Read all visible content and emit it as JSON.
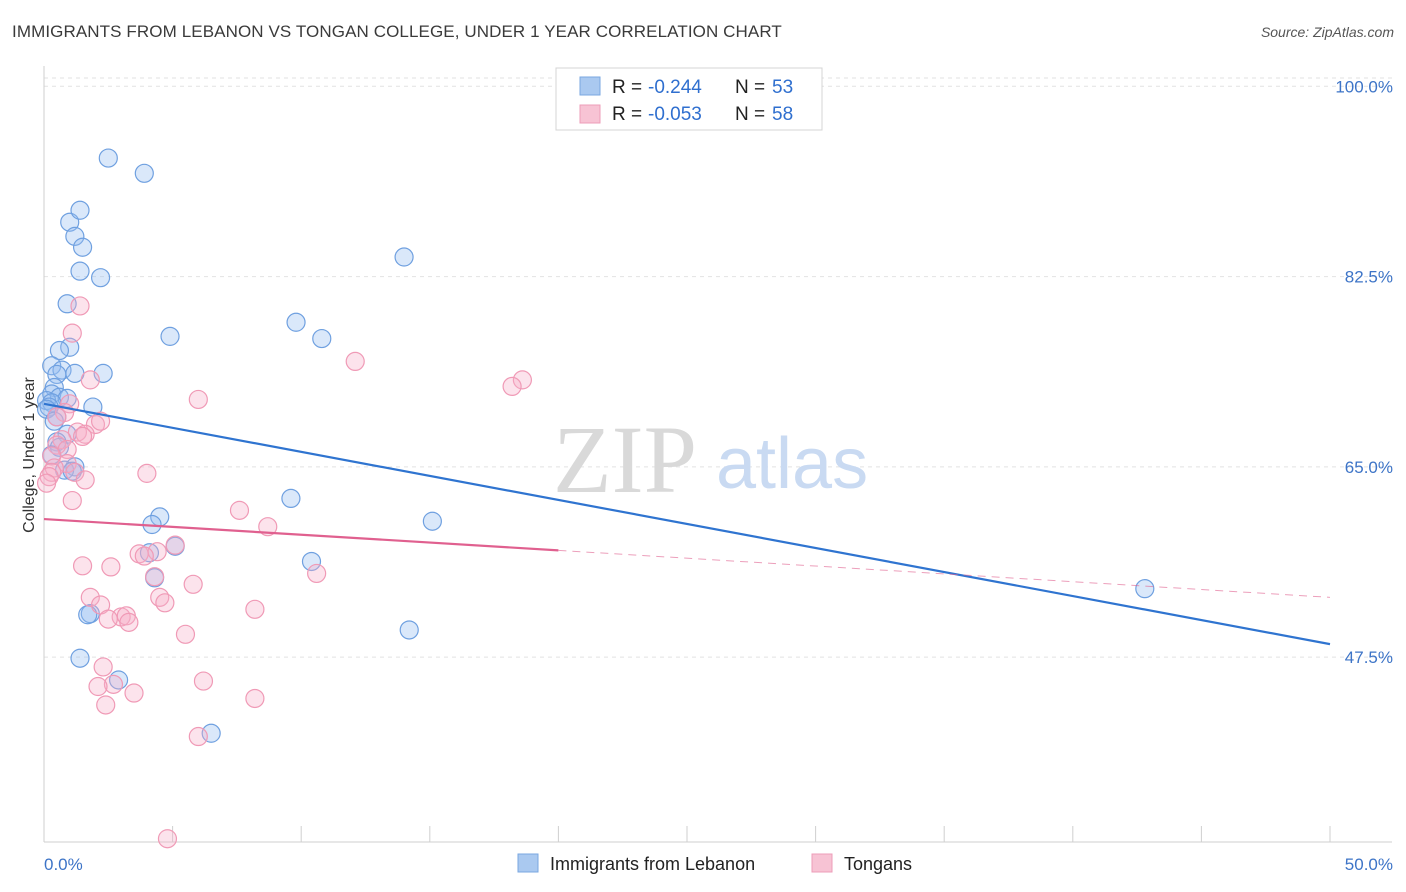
{
  "title": "IMMIGRANTS FROM LEBANON VS TONGAN COLLEGE, UNDER 1 YEAR CORRELATION CHART",
  "source": "Source: ZipAtlas.com",
  "watermark": {
    "zip": "ZIP",
    "atlas": "atlas"
  },
  "legend": {
    "r_label": "R =",
    "n_label": "N =",
    "series": [
      {
        "r": "-0.244",
        "n": "53",
        "color": "#aac9f0",
        "stroke": "#7aa7e0"
      },
      {
        "r": "-0.053",
        "n": "58",
        "color": "#f7c3d4",
        "stroke": "#ee9db8"
      }
    ]
  },
  "bottom_legend": [
    "Immigrants from Lebanon",
    "Tongans"
  ],
  "chart_data": {
    "type": "scatter",
    "title": "IMMIGRANTS FROM LEBANON VS TONGAN COLLEGE, UNDER 1 YEAR CORRELATION CHART",
    "xlabel": "",
    "ylabel": "College, Under 1 year",
    "xlim": [
      0,
      50
    ],
    "ylim": [
      30.5,
      101.5
    ],
    "x_tick_labels": [
      "0.0%",
      "50.0%"
    ],
    "y_ticks": [
      47.5,
      65.0,
      82.5,
      100.0
    ],
    "y_tick_labels": [
      "47.5%",
      "65.0%",
      "82.5%",
      "100.0%"
    ],
    "grid": true,
    "legend_position": "top-center",
    "series": [
      {
        "name": "Immigrants from Lebanon",
        "color": "#6fa0e0",
        "trend": {
          "x": [
            0,
            50
          ],
          "y": [
            70.8,
            48.7
          ],
          "color": "#2f74d0",
          "dashed_from": null
        },
        "points": [
          [
            2.5,
            93.4
          ],
          [
            3.9,
            92.0
          ],
          [
            1.0,
            87.5
          ],
          [
            1.4,
            88.6
          ],
          [
            1.2,
            86.2
          ],
          [
            1.5,
            85.2
          ],
          [
            14.0,
            84.3
          ],
          [
            1.4,
            83.0
          ],
          [
            2.2,
            82.4
          ],
          [
            0.9,
            80.0
          ],
          [
            4.9,
            77.0
          ],
          [
            9.8,
            78.3
          ],
          [
            10.8,
            76.8
          ],
          [
            1.0,
            76.0
          ],
          [
            0.6,
            75.7
          ],
          [
            0.3,
            74.3
          ],
          [
            0.7,
            73.9
          ],
          [
            0.5,
            73.5
          ],
          [
            1.2,
            73.6
          ],
          [
            2.3,
            73.6
          ],
          [
            0.4,
            72.3
          ],
          [
            0.3,
            71.7
          ],
          [
            0.6,
            71.4
          ],
          [
            0.9,
            71.3
          ],
          [
            0.1,
            71.1
          ],
          [
            0.3,
            70.9
          ],
          [
            0.2,
            70.5
          ],
          [
            0.1,
            70.3
          ],
          [
            0.5,
            69.6
          ],
          [
            1.9,
            70.5
          ],
          [
            0.4,
            69.2
          ],
          [
            0.9,
            68.0
          ],
          [
            0.5,
            67.3
          ],
          [
            0.6,
            66.8
          ],
          [
            0.3,
            66.1
          ],
          [
            1.2,
            65.0
          ],
          [
            0.8,
            64.7
          ],
          [
            1.1,
            64.6
          ],
          [
            9.6,
            62.1
          ],
          [
            15.1,
            60.0
          ],
          [
            4.5,
            60.4
          ],
          [
            4.2,
            59.7
          ],
          [
            5.1,
            57.7
          ],
          [
            4.1,
            57.1
          ],
          [
            10.4,
            56.3
          ],
          [
            4.3,
            54.8
          ],
          [
            1.8,
            51.5
          ],
          [
            1.7,
            51.4
          ],
          [
            14.2,
            50.0
          ],
          [
            42.8,
            53.8
          ],
          [
            1.4,
            47.4
          ],
          [
            2.9,
            45.4
          ],
          [
            6.5,
            40.5
          ]
        ]
      },
      {
        "name": "Tongans",
        "color": "#f09ab6",
        "trend": {
          "x": [
            0,
            50
          ],
          "y": [
            60.2,
            53.0
          ],
          "color": "#e0608f",
          "dashed_from": 20
        },
        "points": [
          [
            1.4,
            79.8
          ],
          [
            1.1,
            77.3
          ],
          [
            12.1,
            74.7
          ],
          [
            18.6,
            73.0
          ],
          [
            18.2,
            72.4
          ],
          [
            1.8,
            73.0
          ],
          [
            6.0,
            71.2
          ],
          [
            1.0,
            70.8
          ],
          [
            0.8,
            70.0
          ],
          [
            0.5,
            69.6
          ],
          [
            2.0,
            68.9
          ],
          [
            2.2,
            69.2
          ],
          [
            1.3,
            68.2
          ],
          [
            1.6,
            68.0
          ],
          [
            0.7,
            67.5
          ],
          [
            0.5,
            67.0
          ],
          [
            1.5,
            67.8
          ],
          [
            0.9,
            66.6
          ],
          [
            0.3,
            66.0
          ],
          [
            0.9,
            65.3
          ],
          [
            0.4,
            64.9
          ],
          [
            1.2,
            64.5
          ],
          [
            0.3,
            64.5
          ],
          [
            0.2,
            64.1
          ],
          [
            0.1,
            63.5
          ],
          [
            1.6,
            63.8
          ],
          [
            4.0,
            64.4
          ],
          [
            1.1,
            61.9
          ],
          [
            7.6,
            61.0
          ],
          [
            8.7,
            59.5
          ],
          [
            5.1,
            57.8
          ],
          [
            3.7,
            57.0
          ],
          [
            4.4,
            57.2
          ],
          [
            3.9,
            56.8
          ],
          [
            1.5,
            55.9
          ],
          [
            2.6,
            55.8
          ],
          [
            10.6,
            55.2
          ],
          [
            4.3,
            54.9
          ],
          [
            5.8,
            54.2
          ],
          [
            1.8,
            53.0
          ],
          [
            4.5,
            53.0
          ],
          [
            4.7,
            52.5
          ],
          [
            2.2,
            52.3
          ],
          [
            8.2,
            51.9
          ],
          [
            3.0,
            51.2
          ],
          [
            3.2,
            51.3
          ],
          [
            3.3,
            50.7
          ],
          [
            2.5,
            51.0
          ],
          [
            5.5,
            49.6
          ],
          [
            2.3,
            46.6
          ],
          [
            2.7,
            45.0
          ],
          [
            6.2,
            45.3
          ],
          [
            2.1,
            44.8
          ],
          [
            3.5,
            44.2
          ],
          [
            8.2,
            43.7
          ],
          [
            2.4,
            43.1
          ],
          [
            6.0,
            40.2
          ],
          [
            4.8,
            30.8
          ]
        ]
      }
    ]
  }
}
